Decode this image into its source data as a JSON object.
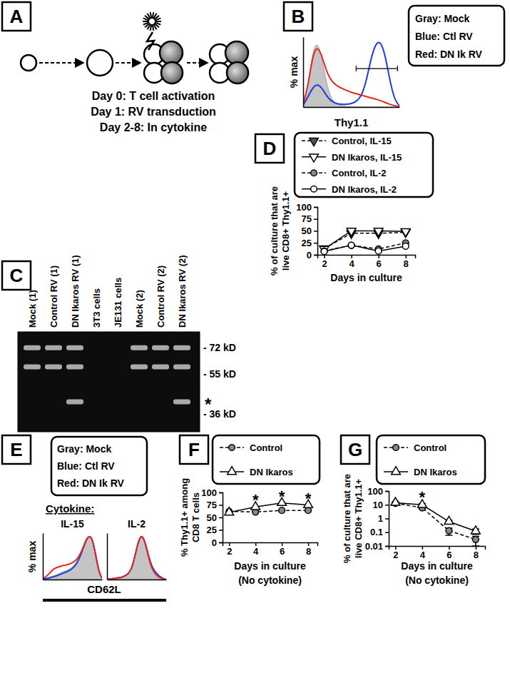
{
  "diagram": {
    "title": "A",
    "steps": [
      "Day 0: T cell activation",
      "Day 1: RV transduction",
      "Day 2-8: In cytokine"
    ]
  },
  "chart_data": [
    {
      "type": "histogram_overlay",
      "title": "B",
      "xlabel": "Thy1.1",
      "ylabel": "% max",
      "legend_box": [
        "Gray: Mock",
        "Blue: Ctl RV",
        "Red: DN Ik RV"
      ],
      "x": [
        0,
        5,
        10,
        15,
        20,
        25,
        30,
        35,
        40,
        45,
        50,
        55,
        60,
        65,
        70,
        75,
        80,
        85,
        90,
        95,
        100
      ],
      "xlim": [
        0,
        100
      ],
      "ylim": [
        0,
        105
      ],
      "tick_labels": false,
      "gate": [
        55,
        98
      ],
      "series": [
        {
          "type": "area",
          "color": "#c4c4c4",
          "values": [
            5,
            30,
            85,
            100,
            70,
            30,
            10,
            4,
            2,
            1,
            0,
            0,
            0,
            0,
            0,
            0,
            0,
            0,
            0,
            0,
            0
          ]
        },
        {
          "type": "line",
          "color": "#1f3be0",
          "values": [
            3,
            15,
            30,
            35,
            28,
            15,
            8,
            5,
            4,
            4,
            5,
            8,
            15,
            35,
            70,
            95,
            100,
            80,
            40,
            10,
            2
          ]
        },
        {
          "type": "line",
          "color": "#e3261f",
          "values": [
            5,
            30,
            80,
            92,
            75,
            50,
            38,
            32,
            28,
            25,
            22,
            20,
            18,
            16,
            14,
            12,
            10,
            7,
            4,
            2,
            1
          ]
        }
      ]
    },
    {
      "type": "blot",
      "title": "C",
      "categories": [
        "Mock (1)",
        "Control RV (1)",
        "DN Ikaros RV (1)",
        "3T3 cells",
        "JE131 cells",
        "Mock (2)",
        "Control RV (2)",
        "DN Ikaros RV (2)"
      ],
      "bands": [
        [
          72,
          59
        ],
        [
          72,
          59
        ],
        [
          72,
          59,
          41
        ],
        [],
        [],
        [
          72,
          59
        ],
        [
          72,
          59
        ],
        [
          72,
          59,
          41
        ]
      ],
      "ylim": [
        30,
        85
      ],
      "log": "y",
      "yticks": [
        {
          "value": 72,
          "label": "- 72 kD"
        },
        {
          "value": 55,
          "label": "- 55 kD"
        },
        {
          "value": 36,
          "label": "- 36 kD"
        }
      ],
      "annotations": [
        {
          "value": 41,
          "label": "*"
        }
      ]
    },
    {
      "type": "line",
      "title": "D",
      "ylabel": [
        "% of culture that are",
        "live CD8+ Thy1.1+"
      ],
      "xlabel": "Days in culture",
      "x": [
        2,
        4,
        6,
        8
      ],
      "xlim": [
        1.5,
        8.7
      ],
      "ylim": [
        0,
        100
      ],
      "xticks": [
        2,
        4,
        6,
        8
      ],
      "yticks": [
        0,
        25,
        50,
        75,
        100
      ],
      "legend": "top",
      "series": [
        {
          "name": "Control, IL-15",
          "color": "#555555",
          "marker": "triangle-down",
          "line_style": "dashed",
          "values": [
            13,
            45,
            45,
            47
          ]
        },
        {
          "name": "DN Ikaros, IL-15",
          "color": "#ffffff",
          "marker": "triangle-down",
          "line_style": "solid",
          "values": [
            12,
            50,
            50,
            49
          ]
        },
        {
          "name": "Control, IL-2",
          "color": "#888888",
          "marker": "circle",
          "line_style": "dashed",
          "values": [
            8,
            20,
            12,
            25
          ]
        },
        {
          "name": "DN Ikaros, IL-2",
          "color": "#ffffff",
          "marker": "circle",
          "line_style": "solid",
          "values": [
            7,
            20,
            8,
            18
          ]
        }
      ]
    },
    {
      "type": "histogram_overlay",
      "title": "E",
      "subtitle": "Cytokine:",
      "xlabel": "CD62L",
      "ylabel": "% max",
      "legend_box": [
        "Gray: Mock",
        "Blue: Ctl RV",
        "Red: DN Ik RV"
      ],
      "x": [
        0,
        5,
        10,
        15,
        20,
        25,
        30,
        35,
        40,
        45,
        50,
        55,
        60,
        65,
        70,
        75,
        80,
        85,
        90,
        95,
        100
      ],
      "xlim": [
        0,
        100
      ],
      "ylim": [
        0,
        105
      ],
      "tick_labels": false,
      "facets": [
        {
          "title": "IL-15",
          "series": [
            {
              "type": "area",
              "color": "#c4c4c4",
              "values": [
                2,
                3,
                5,
                7,
                9,
                12,
                15,
                18,
                20,
                24,
                28,
                35,
                45,
                60,
                80,
                95,
                100,
                85,
                50,
                15,
                3
              ]
            },
            {
              "type": "line",
              "color": "#1f3be0",
              "values": [
                1,
                2,
                3,
                5,
                7,
                9,
                12,
                15,
                17,
                20,
                25,
                32,
                43,
                58,
                78,
                94,
                100,
                86,
                52,
                16,
                3
              ]
            },
            {
              "type": "line",
              "color": "#e3261f",
              "values": [
                3,
                6,
                12,
                20,
                25,
                28,
                30,
                32,
                33,
                35,
                38,
                42,
                50,
                62,
                80,
                95,
                100,
                85,
                50,
                15,
                3
              ]
            }
          ]
        },
        {
          "title": "IL-2",
          "series": [
            {
              "type": "area",
              "color": "#c4c4c4",
              "values": [
                1,
                1,
                2,
                3,
                4,
                5,
                8,
                12,
                20,
                40,
                70,
                95,
                100,
                80,
                50,
                25,
                12,
                6,
                3,
                1,
                0
              ]
            },
            {
              "type": "line",
              "color": "#1f3be0",
              "values": [
                1,
                1,
                2,
                3,
                4,
                5,
                8,
                12,
                20,
                40,
                70,
                95,
                100,
                82,
                55,
                32,
                20,
                12,
                6,
                2,
                0
              ]
            },
            {
              "type": "line",
              "color": "#e3261f",
              "values": [
                1,
                1,
                2,
                3,
                4,
                5,
                8,
                12,
                20,
                40,
                70,
                95,
                100,
                80,
                52,
                28,
                16,
                8,
                4,
                1,
                0
              ]
            }
          ]
        }
      ]
    },
    {
      "type": "line",
      "title": "F",
      "ylabel": [
        "% Thy1.1+ among",
        "CD8 T cells"
      ],
      "xlabel": [
        "Days in culture",
        "(No cytokine)"
      ],
      "x": [
        2,
        4,
        6,
        8
      ],
      "xlim": [
        1.5,
        8.7
      ],
      "ylim": [
        0,
        100
      ],
      "xticks": [
        2,
        4,
        6,
        8
      ],
      "yticks": [
        0,
        25,
        50,
        75,
        100
      ],
      "legend": "top",
      "series": [
        {
          "name": "Control",
          "color": "#888888",
          "marker": "circle",
          "line_style": "dashed",
          "values": [
            62,
            61,
            64,
            64
          ]
        },
        {
          "name": "DN Ikaros",
          "color": "#ffffff",
          "marker": "triangle",
          "line_style": "solid",
          "values": [
            60,
            71,
            79,
            75
          ]
        }
      ],
      "annotations": [
        {
          "x": 4,
          "label": "*"
        },
        {
          "x": 6,
          "label": "*"
        },
        {
          "x": 8,
          "label": "*"
        }
      ]
    },
    {
      "type": "line",
      "title": "G",
      "ylabel": [
        "% of culture that are",
        "live CD8+ Thy1.1+"
      ],
      "xlabel": [
        "Days in culture",
        "(No cytokine)"
      ],
      "x": [
        2,
        4,
        6,
        8
      ],
      "xlim": [
        1.5,
        8.7
      ],
      "ylim": [
        0.01,
        100
      ],
      "log": "y",
      "xticks": [
        2,
        4,
        6,
        8
      ],
      "yticks": [
        0.01,
        0.1,
        1,
        10,
        100
      ],
      "legend": "top",
      "series": [
        {
          "name": "Control",
          "color": "#888888",
          "marker": "circle",
          "line_style": "dashed",
          "values": [
            13,
            6,
            0.13,
            0.03
          ],
          "errors": [
            2,
            1,
            0.07,
            0.02
          ]
        },
        {
          "name": "DN Ikaros",
          "color": "#ffffff",
          "marker": "triangle",
          "line_style": "solid",
          "values": [
            14,
            10,
            0.6,
            0.12
          ],
          "errors": [
            2,
            2,
            0.15,
            0.05
          ]
        }
      ],
      "annotations": [
        {
          "x": 4,
          "label": "*"
        }
      ]
    }
  ]
}
